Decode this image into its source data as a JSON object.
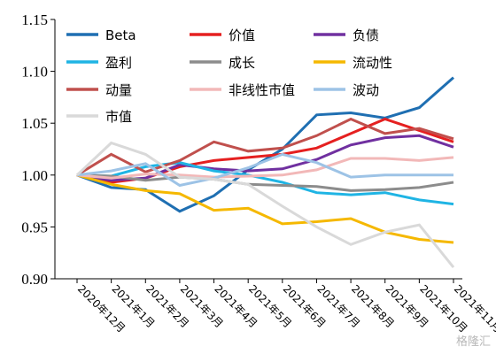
{
  "chart_data": {
    "type": "line",
    "categories": [
      "2020年12月",
      "2021年1月",
      "2021年2月",
      "2021年3月",
      "2021年4月",
      "2021年5月",
      "2021年6月",
      "2021年7月",
      "2021年8月",
      "2021年9月",
      "2021年10月",
      "2021年11月"
    ],
    "ylim": [
      0.9,
      1.15
    ],
    "yticks": [
      "0.90",
      "0.95",
      "1.00",
      "1.05",
      "1.10",
      "1.15"
    ],
    "legend_position": "top-inside",
    "grid": false,
    "series": [
      {
        "name": "Beta",
        "color": "#1f6fb2",
        "values": [
          1.0,
          0.988,
          0.986,
          0.965,
          0.98,
          1.005,
          1.025,
          1.058,
          1.06,
          1.055,
          1.065,
          1.094
        ]
      },
      {
        "name": "价值",
        "color": "#e52020",
        "values": [
          1.0,
          0.993,
          0.997,
          1.008,
          1.014,
          1.017,
          1.02,
          1.026,
          1.04,
          1.054,
          1.043,
          1.032
        ]
      },
      {
        "name": "负债",
        "color": "#7030a0",
        "values": [
          1.0,
          0.995,
          0.997,
          1.01,
          1.006,
          1.004,
          1.006,
          1.015,
          1.029,
          1.036,
          1.038,
          1.027
        ]
      },
      {
        "name": "盈利",
        "color": "#1fb4e4",
        "values": [
          1.0,
          0.999,
          1.008,
          1.012,
          1.004,
          1.0,
          0.993,
          0.983,
          0.981,
          0.983,
          0.976,
          0.972
        ]
      },
      {
        "name": "成长",
        "color": "#8c8c8c",
        "values": [
          1.0,
          0.999,
          0.995,
          0.998,
          0.996,
          0.991,
          0.99,
          0.989,
          0.985,
          0.986,
          0.988,
          0.993
        ]
      },
      {
        "name": "流动性",
        "color": "#f5b800",
        "values": [
          1.0,
          0.991,
          0.985,
          0.982,
          0.966,
          0.968,
          0.953,
          0.955,
          0.958,
          0.945,
          0.938,
          0.935
        ]
      },
      {
        "name": "动量",
        "color": "#c0504d",
        "values": [
          1.0,
          1.02,
          1.003,
          1.014,
          1.032,
          1.023,
          1.026,
          1.038,
          1.054,
          1.04,
          1.045,
          1.035
        ]
      },
      {
        "name": "非线性市值",
        "color": "#f2b8b8",
        "values": [
          1.0,
          0.997,
          1.001,
          1.0,
          0.998,
          0.999,
          1.0,
          1.005,
          1.016,
          1.016,
          1.014,
          1.017
        ]
      },
      {
        "name": "波动",
        "color": "#9dc3e6",
        "values": [
          1.0,
          1.004,
          1.011,
          0.99,
          0.997,
          1.007,
          1.02,
          1.012,
          0.998,
          1.0,
          1.0,
          1.0
        ]
      },
      {
        "name": "市值",
        "color": "#d9d9d9",
        "values": [
          1.0,
          1.031,
          1.02,
          0.998,
          0.996,
          0.991,
          0.97,
          0.95,
          0.933,
          0.945,
          0.952,
          0.911
        ]
      }
    ]
  },
  "watermark": "格隆汇"
}
